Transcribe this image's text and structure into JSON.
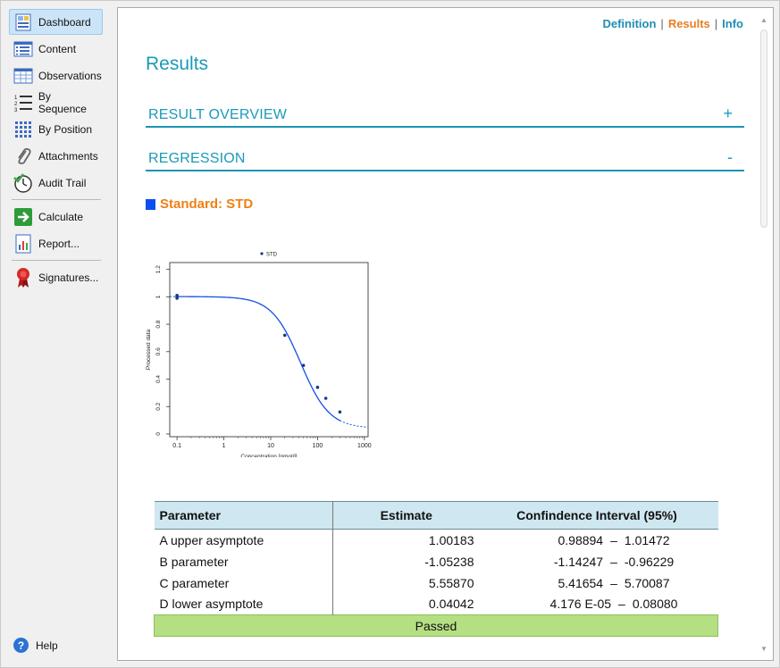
{
  "sidebar": {
    "items": [
      {
        "label": "Dashboard",
        "icon": "dashboard-icon",
        "active": true
      },
      {
        "label": "Content",
        "icon": "content-list-icon"
      },
      {
        "label": "Observations",
        "icon": "table-grid-icon"
      },
      {
        "label": "By Sequence",
        "icon": "numbered-list-icon"
      },
      {
        "label": "By Position",
        "icon": "dot-grid-icon"
      },
      {
        "label": "Attachments",
        "icon": "paperclip-icon"
      },
      {
        "label": "Audit Trail",
        "icon": "clock-check-icon"
      },
      {
        "label": "Calculate",
        "icon": "arrow-right-icon"
      },
      {
        "label": "Report...",
        "icon": "report-chart-icon"
      },
      {
        "label": "Signatures...",
        "icon": "ribbon-seal-icon"
      }
    ],
    "help_label": "Help"
  },
  "top_links": {
    "definition": "Definition",
    "results": "Results",
    "info": "Info",
    "separator": "|"
  },
  "page_title": "Results",
  "sections": {
    "overview": {
      "label": "RESULT OVERVIEW",
      "toggle": "+"
    },
    "regression": {
      "label": "REGRESSION",
      "toggle": "-"
    }
  },
  "standard": {
    "label": "Standard: STD"
  },
  "chart_data": {
    "type": "scatter",
    "series": [
      {
        "name": "STD",
        "points": [
          [
            0.1,
            1.0
          ],
          [
            0.1,
            0.99
          ],
          [
            0.1,
            1.01
          ],
          [
            20,
            0.72
          ],
          [
            50,
            0.5
          ],
          [
            100,
            0.34
          ],
          [
            150,
            0.26
          ],
          [
            300,
            0.16
          ]
        ]
      }
    ],
    "fit_curve": {
      "model": "4-parameter logistic",
      "A": 1.00183,
      "B": -1.05238,
      "C": 5.5587,
      "D": 0.04042
    },
    "xlabel": "Concentration [nmol/l]",
    "ylabel": "Processed data",
    "xscale": "log",
    "xlim": [
      0.07,
      1200
    ],
    "ylim": [
      -0.02,
      1.25
    ],
    "x_ticks": [
      "0.1",
      "1",
      "10",
      "100",
      "1000"
    ],
    "y_ticks": [
      "0",
      "0.2",
      "0.4",
      "0.6",
      "0.8",
      "1",
      "1.2"
    ],
    "legend": "top",
    "colors": {
      "fit": "#1550e0",
      "points": "#1a3a8a"
    }
  },
  "table": {
    "headers": [
      "Parameter",
      "Estimate",
      "Confindence Interval (95%)"
    ],
    "rows": [
      {
        "param": "A upper asymptote",
        "estimate": "1.00183",
        "ci_low": "0.98894",
        "ci_high": "1.01472"
      },
      {
        "param": "B parameter",
        "estimate": "-1.05238",
        "ci_low": "-1.14247",
        "ci_high": "-0.96229"
      },
      {
        "param": "C parameter",
        "estimate": "5.55870",
        "ci_low": "5.41654",
        "ci_high": "5.70087"
      },
      {
        "param": "D lower asymptote",
        "estimate": "0.04042",
        "ci_low": "4.176 E-05",
        "ci_high": "0.08080"
      }
    ],
    "ci_dash": "–",
    "status": "Passed"
  },
  "colors": {
    "accent": "#1a9ab8",
    "orange": "#ef7f13",
    "passed": "#b5df83"
  }
}
